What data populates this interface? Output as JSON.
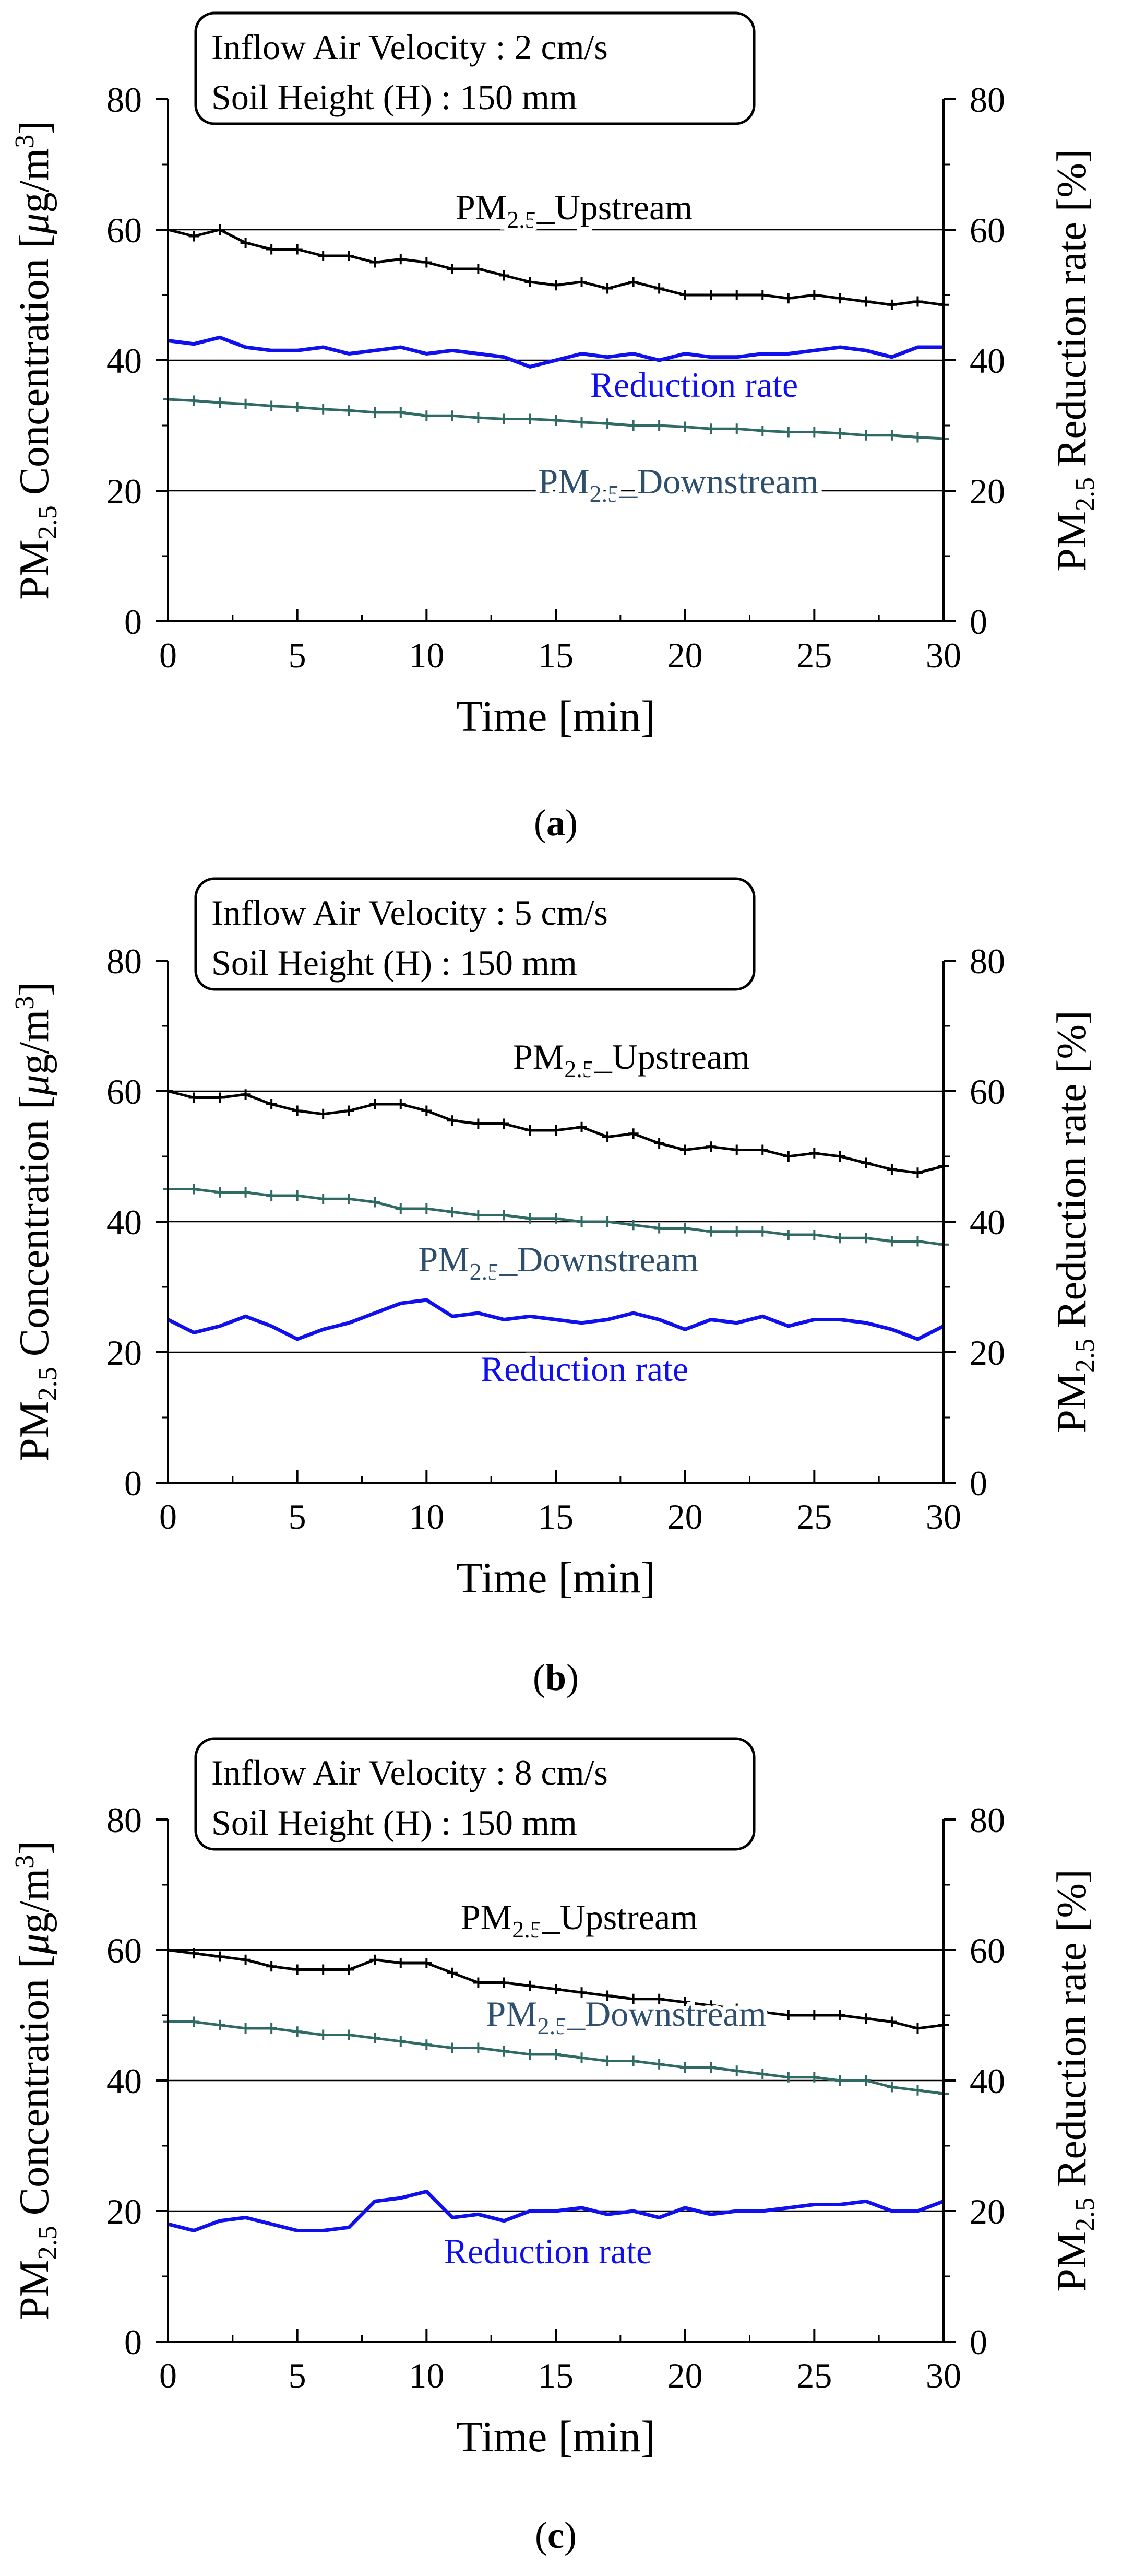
{
  "chart_data": [
    {
      "type": "line",
      "panel_label": "(a)",
      "panel_letter": "a",
      "info_box": [
        "Inflow Air Velocity : 2 cm/s",
        "Soil Height (H) : 150 mm"
      ],
      "xlabel": "Time [min]",
      "ylabel_left": {
        "pre": "PM",
        "sub": "2.5",
        "post": " Concentration [",
        "mu": "μ",
        "unit": "g/m",
        "sup": "3",
        "close": "]"
      },
      "ylabel_right": {
        "pre": "PM",
        "sub": "2.5",
        "post": " Reduction rate [%]"
      },
      "xlim": [
        0,
        30
      ],
      "ylim": [
        0,
        80
      ],
      "xticks": [
        0,
        5,
        10,
        15,
        20,
        25,
        30
      ],
      "yticks": [
        0,
        20,
        40,
        60,
        80
      ],
      "gridlines": [
        20,
        40,
        60
      ],
      "series": [
        {
          "name": "PM2.5_Upstream",
          "role": "upstream",
          "color": "#000000",
          "marker": "plus",
          "label": {
            "pre": "PM",
            "sub": "2.5",
            "post": "_Upstream"
          },
          "x": [
            0,
            1,
            2,
            3,
            4,
            5,
            6,
            7,
            8,
            9,
            10,
            11,
            12,
            13,
            14,
            15,
            16,
            17,
            18,
            19,
            20,
            21,
            22,
            23,
            24,
            25,
            26,
            27,
            28,
            29,
            30
          ],
          "values": [
            60,
            59,
            60,
            58,
            57,
            57,
            56,
            56,
            55,
            55.5,
            55,
            54,
            54,
            53,
            52,
            51.5,
            52,
            51,
            52,
            51,
            50,
            50,
            50,
            50,
            49.5,
            50,
            49.5,
            49,
            48.5,
            49,
            48.5
          ]
        },
        {
          "name": "Reduction rate",
          "role": "reduction",
          "color": "#1010ee",
          "marker": "none",
          "label": {
            "pre": "Reduction rate",
            "sub": "",
            "post": ""
          },
          "x": [
            0,
            1,
            2,
            3,
            4,
            5,
            6,
            7,
            8,
            9,
            10,
            11,
            12,
            13,
            14,
            15,
            16,
            17,
            18,
            19,
            20,
            21,
            22,
            23,
            24,
            25,
            26,
            27,
            28,
            29,
            30
          ],
          "values": [
            43,
            42.5,
            43.5,
            42,
            41.5,
            41.5,
            42,
            41,
            41.5,
            42,
            41,
            41.5,
            41,
            40.5,
            39,
            40,
            41,
            40.5,
            41,
            40,
            41,
            40.5,
            40.5,
            41,
            41,
            41.5,
            42,
            41.5,
            40.5,
            42,
            42
          ]
        },
        {
          "name": "PM2.5_Downstream",
          "role": "downstream",
          "color": "#2f6b64",
          "marker": "plus",
          "label": {
            "pre": "PM",
            "sub": "2.5",
            "post": "_Downstream"
          },
          "x": [
            0,
            1,
            2,
            3,
            4,
            5,
            6,
            7,
            8,
            9,
            10,
            11,
            12,
            13,
            14,
            15,
            16,
            17,
            18,
            19,
            20,
            21,
            22,
            23,
            24,
            25,
            26,
            27,
            28,
            29,
            30
          ],
          "values": [
            34,
            33.8,
            33.5,
            33.3,
            33,
            32.8,
            32.5,
            32.3,
            32,
            32,
            31.5,
            31.5,
            31.2,
            31,
            31,
            30.8,
            30.5,
            30.3,
            30,
            30,
            29.8,
            29.5,
            29.5,
            29.2,
            29,
            29,
            28.8,
            28.5,
            28.5,
            28.2,
            28
          ]
        }
      ]
    },
    {
      "type": "line",
      "panel_label": "(b)",
      "panel_letter": "b",
      "info_box": [
        "Inflow Air Velocity : 5 cm/s",
        "Soil Height (H) : 150 mm"
      ],
      "xlabel": "Time [min]",
      "ylabel_left": {
        "pre": "PM",
        "sub": "2.5",
        "post": " Concentration [",
        "mu": "μ",
        "unit": "g/m",
        "sup": "3",
        "close": "]"
      },
      "ylabel_right": {
        "pre": "PM",
        "sub": "2.5",
        "post": " Reduction rate [%]"
      },
      "xlim": [
        0,
        30
      ],
      "ylim": [
        0,
        80
      ],
      "xticks": [
        0,
        5,
        10,
        15,
        20,
        25,
        30
      ],
      "yticks": [
        0,
        20,
        40,
        60,
        80
      ],
      "gridlines": [
        20,
        40,
        60
      ],
      "series": [
        {
          "name": "PM2.5_Upstream",
          "role": "upstream",
          "color": "#000000",
          "marker": "plus",
          "label": {
            "pre": "PM",
            "sub": "2.5",
            "post": "_Upstream"
          },
          "x": [
            0,
            1,
            2,
            3,
            4,
            5,
            6,
            7,
            8,
            9,
            10,
            11,
            12,
            13,
            14,
            15,
            16,
            17,
            18,
            19,
            20,
            21,
            22,
            23,
            24,
            25,
            26,
            27,
            28,
            29,
            30
          ],
          "values": [
            60,
            59,
            59,
            59.5,
            58,
            57,
            56.5,
            57,
            58,
            58,
            57,
            55.5,
            55,
            55,
            54,
            54,
            54.5,
            53,
            53.5,
            52,
            51,
            51.5,
            51,
            51,
            50,
            50.5,
            50,
            49,
            48,
            47.5,
            48.5
          ]
        },
        {
          "name": "PM2.5_Downstream",
          "role": "downstream",
          "color": "#2f6b64",
          "marker": "plus",
          "label": {
            "pre": "PM",
            "sub": "2.5",
            "post": "_Downstream"
          },
          "x": [
            0,
            1,
            2,
            3,
            4,
            5,
            6,
            7,
            8,
            9,
            10,
            11,
            12,
            13,
            14,
            15,
            16,
            17,
            18,
            19,
            20,
            21,
            22,
            23,
            24,
            25,
            26,
            27,
            28,
            29,
            30
          ],
          "values": [
            45,
            45,
            44.5,
            44.5,
            44,
            44,
            43.5,
            43.5,
            43,
            42,
            42,
            41.5,
            41,
            41,
            40.5,
            40.5,
            40,
            40,
            39.5,
            39,
            39,
            38.5,
            38.5,
            38.5,
            38,
            38,
            37.5,
            37.5,
            37,
            37,
            36.5
          ]
        },
        {
          "name": "Reduction rate",
          "role": "reduction",
          "color": "#1010ee",
          "marker": "none",
          "label": {
            "pre": "Reduction rate",
            "sub": "",
            "post": ""
          },
          "x": [
            0,
            1,
            2,
            3,
            4,
            5,
            6,
            7,
            8,
            9,
            10,
            11,
            12,
            13,
            14,
            15,
            16,
            17,
            18,
            19,
            20,
            21,
            22,
            23,
            24,
            25,
            26,
            27,
            28,
            29,
            30
          ],
          "values": [
            25,
            23,
            24,
            25.5,
            24,
            22,
            23.5,
            24.5,
            26,
            27.5,
            28,
            25.5,
            26,
            25,
            25.5,
            25,
            24.5,
            25,
            26,
            25,
            23.5,
            25,
            24.5,
            25.5,
            24,
            25,
            25,
            24.5,
            23.5,
            22,
            24
          ]
        }
      ]
    },
    {
      "type": "line",
      "panel_label": "(c)",
      "panel_letter": "c",
      "info_box": [
        "Inflow Air Velocity : 8 cm/s",
        "Soil Height (H) : 150 mm"
      ],
      "xlabel": "Time [min]",
      "ylabel_left": {
        "pre": "PM",
        "sub": "2.5",
        "post": " Concentration [",
        "mu": "μ",
        "unit": "g/m",
        "sup": "3",
        "close": "]"
      },
      "ylabel_right": {
        "pre": "PM",
        "sub": "2.5",
        "post": " Reduction rate [%]"
      },
      "xlim": [
        0,
        30
      ],
      "ylim": [
        0,
        80
      ],
      "xticks": [
        0,
        5,
        10,
        15,
        20,
        25,
        30
      ],
      "yticks": [
        0,
        20,
        40,
        60,
        80
      ],
      "gridlines": [
        20,
        40,
        60
      ],
      "series": [
        {
          "name": "PM2.5_Upstream",
          "role": "upstream",
          "color": "#000000",
          "marker": "plus",
          "label": {
            "pre": "PM",
            "sub": "2.5",
            "post": "_Upstream"
          },
          "x": [
            0,
            1,
            2,
            3,
            4,
            5,
            6,
            7,
            8,
            9,
            10,
            11,
            12,
            13,
            14,
            15,
            16,
            17,
            18,
            19,
            20,
            21,
            22,
            23,
            24,
            25,
            26,
            27,
            28,
            29,
            30
          ],
          "values": [
            60,
            59.5,
            59,
            58.5,
            57.5,
            57,
            57,
            57,
            58.5,
            58,
            58,
            56.5,
            55,
            55,
            54.5,
            54,
            53.5,
            53,
            52.5,
            52.5,
            52,
            51.5,
            51,
            50.5,
            50,
            50,
            50,
            49.5,
            49,
            48,
            48.5
          ]
        },
        {
          "name": "PM2.5_Downstream",
          "role": "downstream",
          "color": "#2f6b64",
          "marker": "plus",
          "label": {
            "pre": "PM",
            "sub": "2.5",
            "post": "_Downstream"
          },
          "x": [
            0,
            1,
            2,
            3,
            4,
            5,
            6,
            7,
            8,
            9,
            10,
            11,
            12,
            13,
            14,
            15,
            16,
            17,
            18,
            19,
            20,
            21,
            22,
            23,
            24,
            25,
            26,
            27,
            28,
            29,
            30
          ],
          "values": [
            49,
            49,
            48.5,
            48,
            48,
            47.5,
            47,
            47,
            46.5,
            46,
            45.5,
            45,
            45,
            44.5,
            44,
            44,
            43.5,
            43,
            43,
            42.5,
            42,
            42,
            41.5,
            41,
            40.5,
            40.5,
            40,
            40,
            39,
            38.5,
            38
          ]
        },
        {
          "name": "Reduction rate",
          "role": "reduction",
          "color": "#1010ee",
          "marker": "none",
          "label": {
            "pre": "Reduction rate",
            "sub": "",
            "post": ""
          },
          "x": [
            0,
            1,
            2,
            3,
            4,
            5,
            6,
            7,
            8,
            9,
            10,
            11,
            12,
            13,
            14,
            15,
            16,
            17,
            18,
            19,
            20,
            21,
            22,
            23,
            24,
            25,
            26,
            27,
            28,
            29,
            30
          ],
          "values": [
            18,
            17,
            18.5,
            19,
            18,
            17,
            17,
            17.5,
            21.5,
            22,
            23,
            19,
            19.5,
            18.5,
            20,
            20,
            20.5,
            19.5,
            20,
            19,
            20.5,
            19.5,
            20,
            20,
            20.5,
            21,
            21,
            21.5,
            20,
            20,
            21.5
          ]
        }
      ]
    }
  ]
}
